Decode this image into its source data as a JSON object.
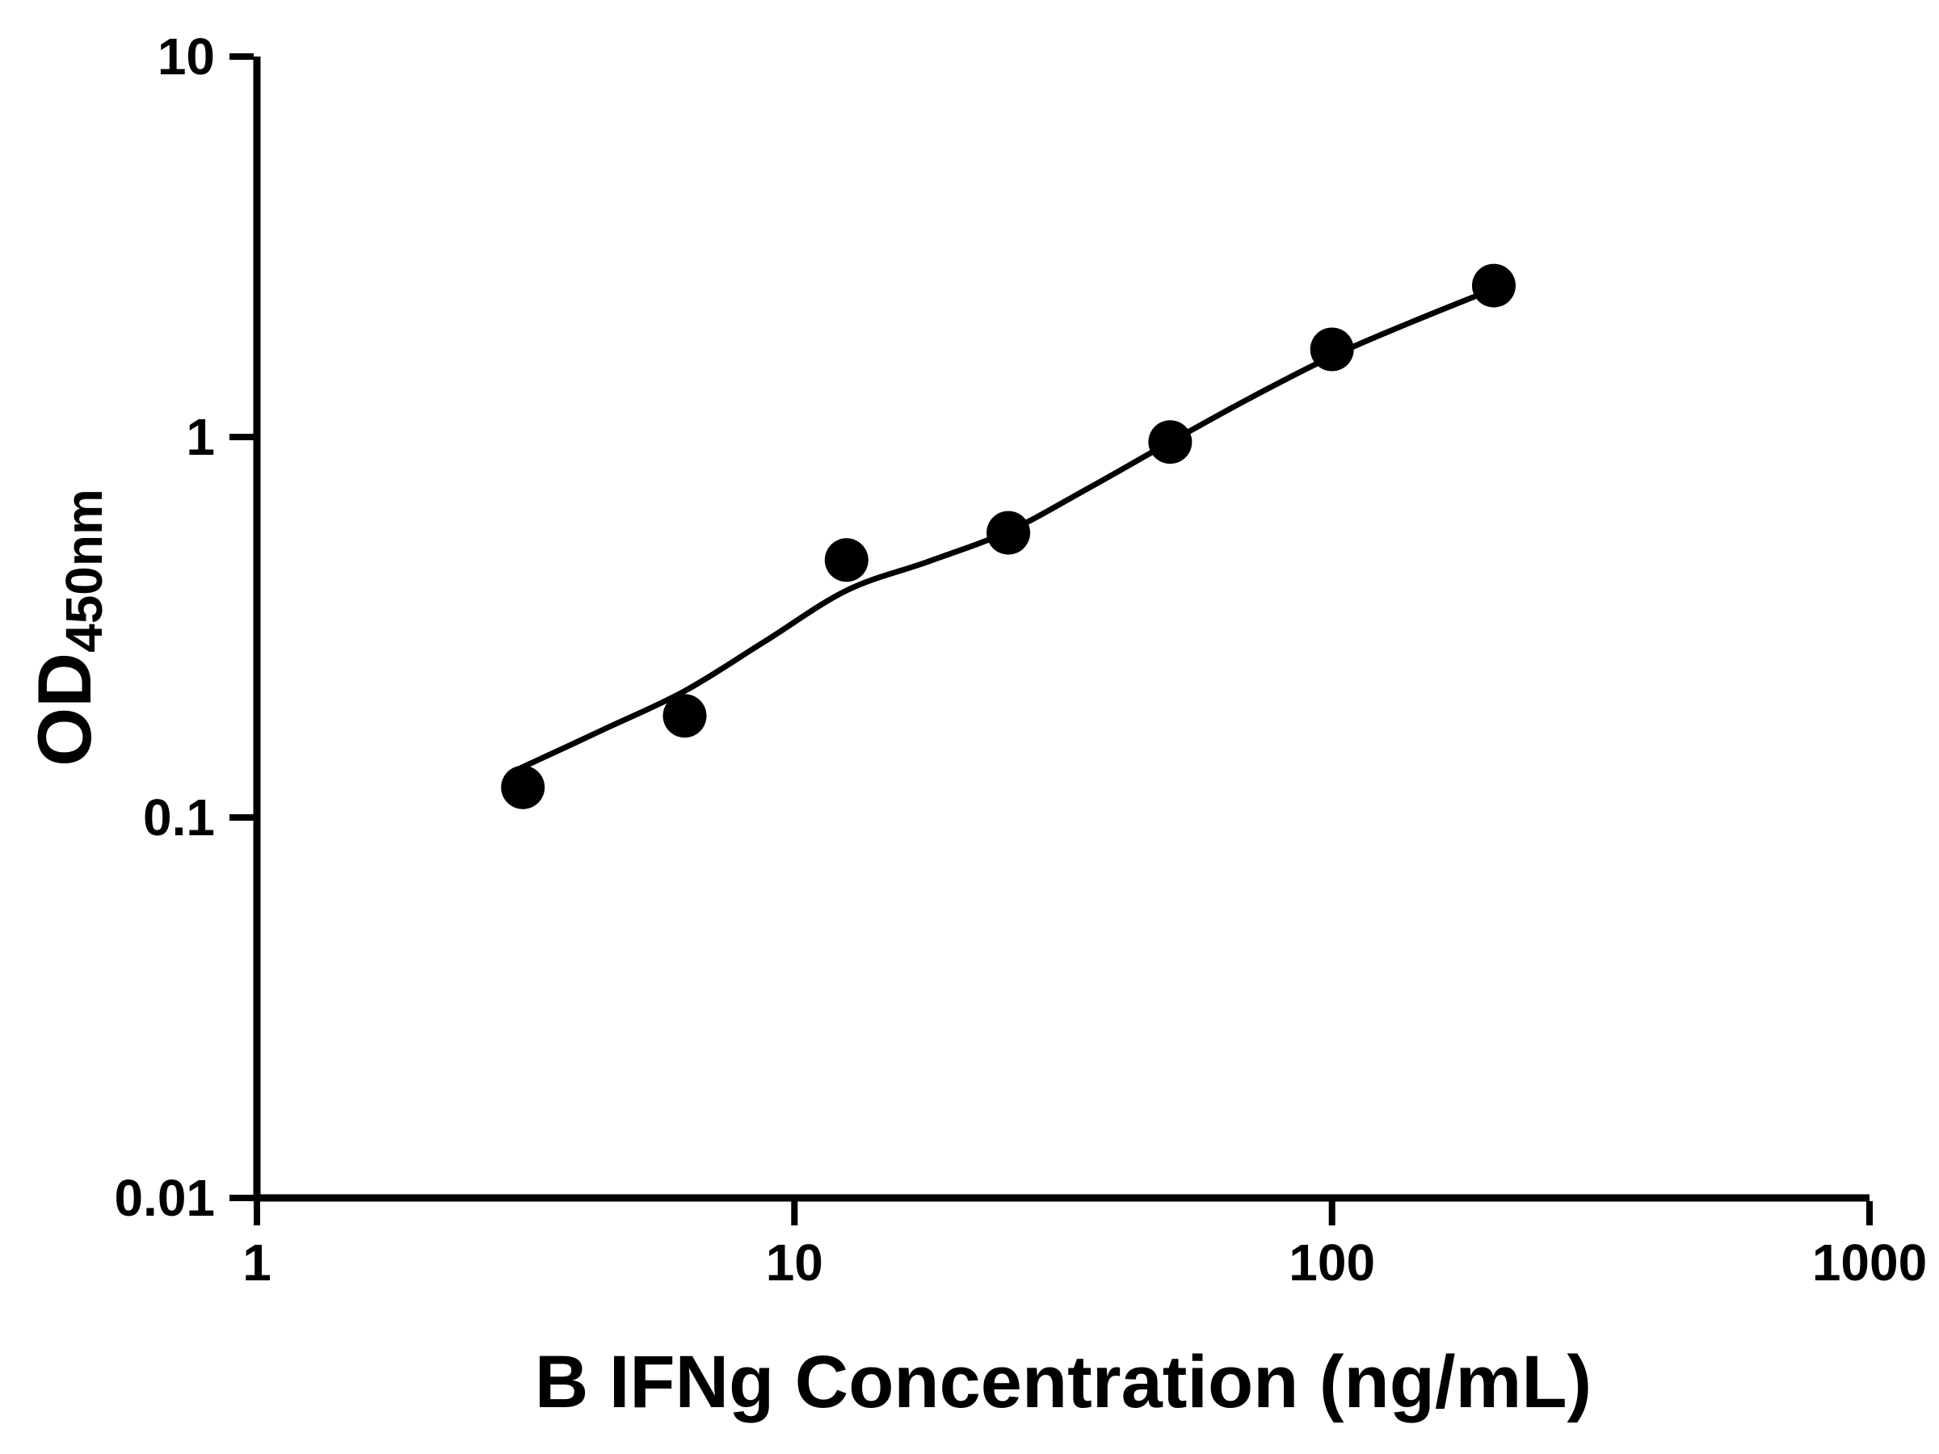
{
  "chart_data": {
    "type": "scatter",
    "title": "",
    "xlabel": "B IFNg Concentration (ng/mL)",
    "ylabel_main": "OD",
    "ylabel_sub": "450nm",
    "x_scale": "log",
    "y_scale": "log",
    "xlim": [
      1,
      1000
    ],
    "ylim": [
      0.01,
      10
    ],
    "grid": false,
    "legend": "none",
    "x_ticks": [
      {
        "value": 1,
        "label": "1"
      },
      {
        "value": 10,
        "label": "10"
      },
      {
        "value": 100,
        "label": "100"
      },
      {
        "value": 1000,
        "label": "1000"
      }
    ],
    "y_ticks": [
      {
        "value": 0.01,
        "label": "0.01"
      },
      {
        "value": 0.1,
        "label": "0.1"
      },
      {
        "value": 1,
        "label": "1"
      },
      {
        "value": 10,
        "label": "10"
      }
    ],
    "points": [
      {
        "x": 3.125,
        "y": 0.12
      },
      {
        "x": 6.25,
        "y": 0.185
      },
      {
        "x": 12.5,
        "y": 0.475
      },
      {
        "x": 25,
        "y": 0.56
      },
      {
        "x": 50,
        "y": 0.97
      },
      {
        "x": 100,
        "y": 1.7
      },
      {
        "x": 200,
        "y": 2.5
      }
    ],
    "fit_curve": [
      [
        3.1,
        0.135
      ],
      [
        4.4,
        0.17
      ],
      [
        6.25,
        0.215
      ],
      [
        8.8,
        0.29
      ],
      [
        12.5,
        0.395
      ],
      [
        17.7,
        0.47
      ],
      [
        25,
        0.565
      ],
      [
        35,
        0.73
      ],
      [
        50,
        0.97
      ],
      [
        70,
        1.26
      ],
      [
        100,
        1.63
      ],
      [
        140,
        2.0
      ],
      [
        200,
        2.45
      ]
    ],
    "colors": {
      "points": "#000000",
      "curve": "#000000",
      "axis": "#000000",
      "background": "#ffffff"
    }
  }
}
